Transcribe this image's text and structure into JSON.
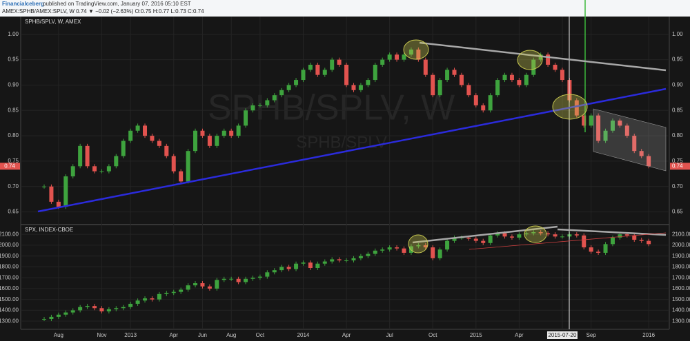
{
  "header": {
    "author": "Financialceberg",
    "published": " published on TradingView.com, January 07, 2016 05:10 EST",
    "symbol_line": "AMEX:SPHB/AMEX:SPLV, W 0.74 ▼ −0.02 (−2.63%) O:0.75 H:0.77 L:0.73 C:0.74"
  },
  "chart_data": [
    {
      "type": "candlestick",
      "title": "SPHB/SPLV, W, AMEX",
      "watermark": "SPHB/SPLV, W",
      "watermark_sub": "SPHB/SPLV",
      "categories": [
        null,
        null,
        "Aug",
        null,
        null,
        null,
        null,
        null,
        "Nov",
        null,
        null,
        null,
        "2013",
        null,
        null,
        null,
        null,
        null,
        "Apr",
        null,
        null,
        null,
        "Jun",
        null,
        null,
        null,
        "Aug",
        null,
        null,
        null,
        "Oct",
        null,
        null,
        null,
        null,
        null,
        "2014",
        null,
        null,
        null,
        null,
        null,
        "Apr",
        null,
        null,
        null,
        null,
        null,
        "Jul",
        null,
        null,
        null,
        null,
        null,
        "Oct",
        null,
        null,
        null,
        null,
        null,
        "2015",
        null,
        null,
        null,
        null,
        null,
        "Apr",
        null,
        null,
        null,
        null,
        null,
        "2015-07-20",
        null,
        null,
        null,
        "Sep",
        null,
        null,
        null,
        null,
        null,
        null,
        null,
        "2016"
      ],
      "values": [
        0.7,
        0.67,
        0.66,
        0.72,
        0.74,
        0.78,
        0.74,
        0.73,
        0.73,
        0.74,
        0.76,
        0.79,
        0.81,
        0.82,
        0.8,
        0.79,
        0.78,
        0.76,
        0.73,
        0.71,
        0.77,
        0.81,
        0.8,
        0.78,
        0.8,
        0.81,
        0.8,
        0.82,
        0.85,
        0.86,
        0.86,
        0.87,
        0.88,
        0.89,
        0.9,
        0.91,
        0.93,
        0.94,
        0.92,
        0.93,
        0.95,
        0.94,
        0.9,
        0.89,
        0.9,
        0.91,
        0.94,
        0.95,
        0.96,
        0.95,
        0.96,
        0.97,
        0.95,
        0.92,
        0.88,
        0.91,
        0.93,
        0.92,
        0.9,
        0.88,
        0.86,
        0.85,
        0.88,
        0.91,
        0.92,
        0.91,
        0.9,
        0.92,
        0.95,
        0.96,
        0.94,
        0.93,
        0.91,
        0.87,
        0.84,
        0.82,
        0.84,
        0.79,
        0.81,
        0.83,
        0.82,
        0.8,
        0.77,
        0.76,
        0.74
      ],
      "up_color": "#3ea33e",
      "down_color": "#e2534f",
      "ylim": [
        0.625,
        1.035
      ],
      "yticks": [
        {
          "value": 0.65,
          "label": "0.65"
        },
        {
          "value": 0.7,
          "label": "0.70"
        },
        {
          "value": 0.75,
          "label": "0.75"
        },
        {
          "value": 0.8,
          "label": "0.80"
        },
        {
          "value": 0.85,
          "label": "0.85"
        },
        {
          "value": 0.9,
          "label": "0.90"
        },
        {
          "value": 0.95,
          "label": "0.95"
        },
        {
          "value": 1,
          "label": "1.00"
        }
      ],
      "grid": true
    },
    {
      "type": "candlestick",
      "title": "SPX, INDEX-CBOE",
      "values": [
        1320,
        1340,
        1360,
        1380,
        1400,
        1430,
        1440,
        1420,
        1390,
        1410,
        1420,
        1430,
        1460,
        1490,
        1510,
        1500,
        1550,
        1560,
        1570,
        1590,
        1630,
        1650,
        1620,
        1600,
        1680,
        1690,
        1690,
        1660,
        1690,
        1700,
        1710,
        1750,
        1770,
        1800,
        1780,
        1830,
        1840,
        1790,
        1830,
        1850,
        1870,
        1860,
        1860,
        1880,
        1900,
        1920,
        1950,
        1960,
        1980,
        1970,
        1930,
        1990,
        2000,
        1980,
        1880,
        1960,
        2040,
        2070,
        2070,
        2060,
        2040,
        2020,
        2090,
        2110,
        2080,
        2070,
        2100,
        2110,
        2120,
        2110,
        2100,
        2080,
        2080,
        2100,
        2090,
        1980,
        1940,
        1930,
        2010,
        2070,
        2100,
        2090,
        2050,
        2040,
        2010
      ],
      "up_color": "#3ea33e",
      "down_color": "#e2534f",
      "ylim": [
        1225,
        2190
      ],
      "yticks": [
        {
          "value": 1300,
          "label": "1300.00"
        },
        {
          "value": 1400,
          "label": "1400.00"
        },
        {
          "value": 1500,
          "label": "1500.00"
        },
        {
          "value": 1600,
          "label": "1600.00"
        },
        {
          "value": 1700,
          "label": "1700.00"
        },
        {
          "value": 1800,
          "label": "1800.00"
        },
        {
          "value": 1900,
          "label": "1900.00"
        },
        {
          "value": 2000,
          "label": "2000.00"
        },
        {
          "value": 2100,
          "label": "2100.00"
        }
      ],
      "grid": true
    }
  ]
}
